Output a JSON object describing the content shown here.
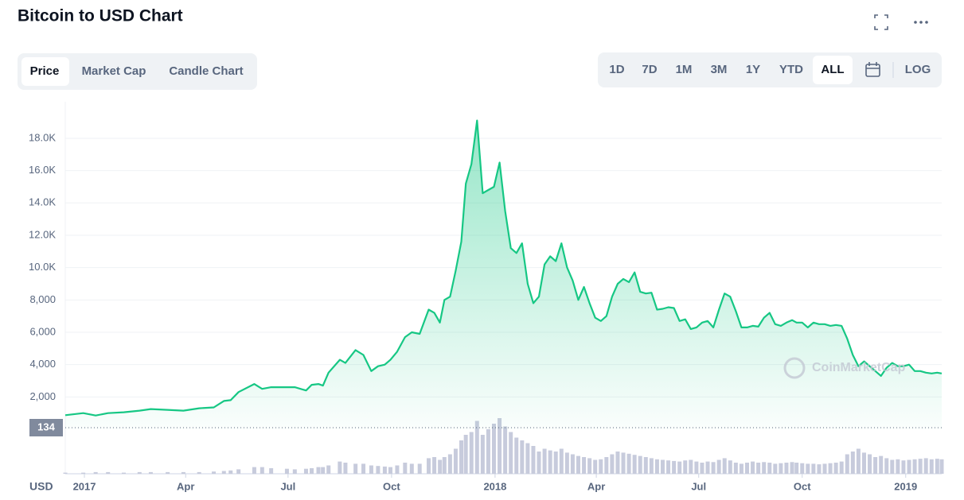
{
  "header": {
    "title": "Bitcoin to USD Chart"
  },
  "tabs": [
    "Price",
    "Market Cap",
    "Candle Chart"
  ],
  "ranges": [
    "1D",
    "7D",
    "1M",
    "3M",
    "1Y",
    "YTD",
    "ALL"
  ],
  "log": "LOG",
  "chart_data": {
    "type": "area",
    "ylabel": "USD",
    "price_marker": "134",
    "watermark": "CoinMarketCap",
    "color": "#16c784",
    "volume_color": "#c7cbdc",
    "grid": true,
    "x": [
      -17,
      -1,
      10,
      21,
      35,
      49,
      59,
      74,
      88,
      102,
      115,
      124,
      130,
      137,
      151,
      158,
      166,
      180,
      187,
      197,
      202,
      208,
      212,
      217,
      227,
      232,
      241,
      248,
      255,
      261,
      267,
      272,
      278,
      285,
      291,
      298,
      306,
      311,
      316,
      320,
      325,
      330,
      335,
      339,
      344,
      349,
      354,
      359,
      364,
      369,
      374,
      379,
      384,
      389,
      394,
      399,
      404,
      409,
      414,
      419,
      424,
      429,
      434,
      439,
      444,
      449,
      454,
      459,
      464,
      469,
      474,
      479,
      484,
      489,
      494,
      499,
      504,
      509,
      514,
      519,
      524,
      529,
      534,
      539,
      544,
      549,
      554,
      559,
      564,
      569,
      574,
      579,
      584,
      589,
      594,
      599,
      604,
      609,
      614,
      619,
      624,
      629,
      633,
      638,
      643,
      648,
      653,
      658,
      663,
      668,
      673,
      678,
      683,
      688,
      693,
      698,
      703,
      708,
      713,
      718,
      723,
      728,
      733,
      738,
      743,
      748,
      753,
      758,
      762
    ],
    "values": [
      870,
      1000,
      850,
      1000,
      1050,
      1150,
      1250,
      1200,
      1150,
      1300,
      1350,
      1750,
      1800,
      2300,
      2800,
      2500,
      2600,
      2600,
      2600,
      2400,
      2750,
      2800,
      2700,
      3500,
      4300,
      4100,
      4900,
      4600,
      3600,
      3900,
      4000,
      4300,
      4800,
      5700,
      6000,
      5900,
      7400,
      7200,
      6600,
      8000,
      8200,
      9800,
      11600,
      15200,
      16400,
      19100,
      14600,
      14800,
      15000,
      16500,
      13500,
      11200,
      10900,
      11500,
      9000,
      7800,
      8200,
      10200,
      10700,
      10400,
      11500,
      10000,
      9200,
      8000,
      8800,
      7800,
      6900,
      6700,
      7000,
      8200,
      9000,
      9300,
      9100,
      9700,
      8500,
      8400,
      8450,
      7400,
      7450,
      7550,
      7500,
      6700,
      6800,
      6200,
      6300,
      6600,
      6700,
      6300,
      7400,
      8400,
      8200,
      7300,
      6300,
      6300,
      6400,
      6350,
      6900,
      7200,
      6500,
      6400,
      6600,
      6750,
      6600,
      6600,
      6300,
      6600,
      6500,
      6500,
      6400,
      6450,
      6400,
      5600,
      4600,
      3900,
      4200,
      3900,
      3600,
      3300,
      3800,
      4100,
      3900,
      3900,
      4000,
      3600,
      3600,
      3500,
      3450,
      3500,
      3450
    ],
    "volume": [
      2,
      2,
      3,
      3,
      2,
      3,
      3,
      3,
      3,
      3,
      4,
      5,
      6,
      8,
      12,
      12,
      10,
      9,
      8,
      9,
      10,
      12,
      12,
      15,
      22,
      20,
      18,
      18,
      15,
      14,
      13,
      12,
      15,
      20,
      18,
      18,
      28,
      30,
      25,
      30,
      35,
      45,
      60,
      70,
      75,
      95,
      70,
      80,
      90,
      100,
      85,
      75,
      65,
      60,
      55,
      50,
      40,
      45,
      42,
      40,
      45,
      38,
      35,
      32,
      30,
      28,
      25,
      26,
      30,
      35,
      40,
      38,
      36,
      34,
      32,
      30,
      28,
      26,
      25,
      24,
      23,
      22,
      24,
      25,
      22,
      20,
      22,
      21,
      25,
      28,
      24,
      20,
      18,
      20,
      22,
      20,
      21,
      20,
      18,
      19,
      20,
      21,
      20,
      19,
      18,
      18,
      17,
      18,
      19,
      20,
      22,
      35,
      40,
      45,
      38,
      35,
      30,
      32,
      28,
      25,
      26,
      24,
      25,
      26,
      27,
      28,
      26,
      27,
      26
    ],
    "volume_lim": [
      0,
      100
    ],
    "xlim": [
      -17,
      762
    ],
    "xticks": [
      {
        "value": 0,
        "label": "2017"
      },
      {
        "value": 90,
        "label": "Apr"
      },
      {
        "value": 181,
        "label": "Jul"
      },
      {
        "value": 273,
        "label": "Oct"
      },
      {
        "value": 365,
        "label": "2018"
      },
      {
        "value": 455,
        "label": "Apr"
      },
      {
        "value": 546,
        "label": "Jul"
      },
      {
        "value": 638,
        "label": "Oct"
      },
      {
        "value": 730,
        "label": "2019"
      }
    ],
    "ylim": [
      0,
      20260
    ],
    "yticks": [
      {
        "value": 2000,
        "label": "2,000"
      },
      {
        "value": 4000,
        "label": "4,000"
      },
      {
        "value": 6000,
        "label": "6,000"
      },
      {
        "value": 8000,
        "label": "8,000"
      },
      {
        "value": 10000,
        "label": "10.0K"
      },
      {
        "value": 12000,
        "label": "12.0K"
      },
      {
        "value": 14000,
        "label": "14.0K"
      },
      {
        "value": 16000,
        "label": "16.0K"
      },
      {
        "value": 18000,
        "label": "18.0K"
      }
    ]
  }
}
